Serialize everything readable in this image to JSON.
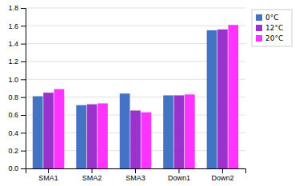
{
  "chart_data": {
    "type": "bar",
    "categories": [
      "SMA1",
      "SMA2",
      "SMA3",
      "Down1",
      "Down2"
    ],
    "series": [
      {
        "name": "0°C",
        "color": "#4472C4",
        "values": [
          0.81,
          0.71,
          0.84,
          0.82,
          1.55
        ]
      },
      {
        "name": "12°C",
        "color": "#9933CC",
        "values": [
          0.85,
          0.72,
          0.65,
          0.82,
          1.56
        ]
      },
      {
        "name": "20°C",
        "color": "#FF33FF",
        "values": [
          0.89,
          0.73,
          0.63,
          0.83,
          1.61
        ]
      }
    ],
    "ylim": [
      0.0,
      1.8
    ],
    "yticks": [
      {
        "value": 0,
        "label": "0.0"
      },
      0.2,
      0.4,
      0.6,
      0.8,
      {
        "value": 1,
        "label": "1.0"
      },
      1.2,
      1.4,
      1.6,
      1.8
    ],
    "grid": true,
    "legend": "right"
  }
}
